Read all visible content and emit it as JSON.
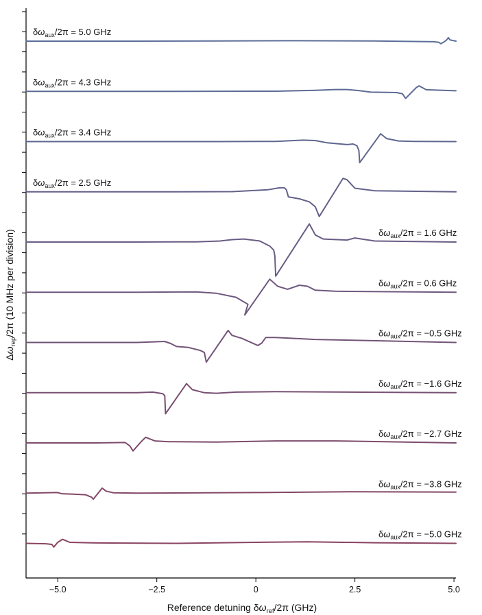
{
  "chart_data": {
    "type": "line",
    "title": "",
    "xlabel": {
      "main": "Reference detuning δ",
      "symbol": "ω",
      "sub": "ref",
      "rest": "/2π (GHz)"
    },
    "ylabel": {
      "main": "Δ",
      "symbol": "ω",
      "sub": "rep",
      "rest": "/2π (10 MHz per division)"
    },
    "xlim": [
      -5.8,
      5.05
    ],
    "x_ticks": [
      -5.0,
      -2.5,
      0,
      2.5,
      5.0
    ],
    "x_tick_labels": [
      "−5.0",
      "−2.5",
      "0",
      "2.5",
      "5.0"
    ],
    "y_units": "MHz",
    "y_division": 10,
    "y_minor_tick_count": 27,
    "series": [
      {
        "label_main": "δ",
        "label_symbol": "ω",
        "label_sub": "aux",
        "label_rest": "/2π = 5.0 GHz",
        "label_side": "left",
        "color": "#5a6e9a",
        "offset_div": 0,
        "x": [
          -5.8,
          -3.0,
          -1.0,
          1.0,
          3.0,
          4.5,
          4.62,
          4.67,
          4.73,
          4.8,
          4.86,
          4.9,
          5.05
        ],
        "y": [
          0,
          0,
          0.1,
          0.2,
          0.1,
          -0.3,
          -0.6,
          -1.3,
          -0.6,
          0.3,
          1.7,
          0.6,
          0.0
        ]
      },
      {
        "label_main": "δ",
        "label_symbol": "ω",
        "label_sub": "aux",
        "label_rest": "/2π = 4.3 GHz",
        "label_side": "left",
        "color": "#5c6a95",
        "offset_div": 2.5,
        "x": [
          -5.8,
          -2.0,
          0.5,
          1.5,
          2.0,
          2.3,
          2.6,
          2.9,
          3.3,
          3.55,
          3.7,
          3.78,
          4.05,
          4.12,
          4.3,
          5.05
        ],
        "y": [
          0,
          0,
          0.1,
          0.5,
          0.9,
          0.9,
          0.4,
          -0.4,
          -0.5,
          -0.6,
          -1.2,
          -3.5,
          1.9,
          2.7,
          0.8,
          0.3
        ]
      },
      {
        "label_main": "δ",
        "label_symbol": "ω",
        "label_sub": "aux",
        "label_rest": "/2π = 3.4 GHz",
        "label_side": "left",
        "color": "#5f6690",
        "offset_div": 5,
        "x": [
          -5.8,
          -1.0,
          0.5,
          1.2,
          1.5,
          1.8,
          2.3,
          2.45,
          2.55,
          2.6,
          2.62,
          3.15,
          3.3,
          3.6,
          4.0,
          5.05
        ],
        "y": [
          0,
          0,
          0.1,
          0.7,
          0.5,
          -0.6,
          -1.5,
          -1.2,
          -2.0,
          -4.4,
          -10.5,
          3.9,
          1.5,
          0.3,
          0.1,
          0.0
        ]
      },
      {
        "label_main": "δ",
        "label_symbol": "ω",
        "label_sub": "aux",
        "label_rest": "/2π = 2.5 GHz",
        "label_side": "left",
        "color": "#63618a",
        "offset_div": 7.5,
        "x": [
          -5.8,
          -2.0,
          -0.6,
          0.3,
          0.6,
          0.72,
          0.77,
          0.82,
          1.1,
          1.35,
          1.5,
          1.6,
          2.2,
          2.3,
          2.5,
          3.0,
          5.05
        ],
        "y": [
          0,
          0,
          0.1,
          1.0,
          2.0,
          2.0,
          1.0,
          -2.5,
          -3.5,
          -5.0,
          -7.5,
          -12.3,
          6.7,
          6.0,
          1.8,
          0.5,
          0.0
        ]
      },
      {
        "label_main": "δ",
        "label_symbol": "ω",
        "label_sub": "aux",
        "label_rest": "/2π = 1.6 GHz",
        "label_side": "right",
        "color": "#685c84",
        "offset_div": 10,
        "x": [
          -5.8,
          -3.0,
          -1.5,
          -0.9,
          -0.6,
          -0.3,
          0.1,
          0.35,
          0.45,
          0.48,
          0.5,
          1.35,
          1.5,
          1.7,
          2.3,
          2.5,
          3.0,
          5.05
        ],
        "y": [
          0,
          0,
          0.1,
          0.5,
          1.2,
          1.5,
          0.5,
          -2.0,
          -4.0,
          -7.0,
          -17.0,
          9.0,
          3.5,
          1.5,
          1.0,
          2.0,
          0.5,
          0.0
        ]
      },
      {
        "label_main": "δ",
        "label_symbol": "ω",
        "label_sub": "aux",
        "label_rest": "/2π = 0.6 GHz",
        "label_side": "right",
        "color": "#6d587e",
        "offset_div": 12.5,
        "x": [
          -5.8,
          -3.0,
          -1.5,
          -1.0,
          -0.5,
          -0.2,
          -0.28,
          0.35,
          0.55,
          0.8,
          1.1,
          1.3,
          1.5,
          2.0,
          5.05
        ],
        "y": [
          0,
          0,
          0.2,
          -0.5,
          -2.5,
          -6.0,
          -11.3,
          6.5,
          3.0,
          1.5,
          3.5,
          3.0,
          1.0,
          0.5,
          0.0
        ]
      },
      {
        "label_main": "δ",
        "label_symbol": "ω",
        "label_sub": "aux",
        "label_rest": "/2π = −0.5 GHz",
        "label_side": "right",
        "color": "#725378",
        "offset_div": 15,
        "x": [
          -5.8,
          -3.0,
          -2.3,
          -2.15,
          -2.0,
          -1.7,
          -1.4,
          -1.3,
          -1.25,
          -0.7,
          -0.6,
          -0.35,
          0.05,
          0.15,
          0.25,
          0.5,
          1.5,
          5.05
        ],
        "y": [
          0,
          0,
          0.5,
          -0.5,
          -2.0,
          -2.5,
          -4.0,
          -5.0,
          -9.8,
          6.0,
          3.5,
          2.0,
          -1.5,
          -0.3,
          2.5,
          2.5,
          1.5,
          0.0
        ]
      },
      {
        "label_main": "δ",
        "label_symbol": "ω",
        "label_sub": "aux",
        "label_rest": "/2π = −1.6 GHz",
        "label_side": "right",
        "color": "#784f72",
        "offset_div": 17.5,
        "x": [
          -5.8,
          -3.0,
          -2.6,
          -2.35,
          -2.3,
          -2.28,
          -1.75,
          -1.6,
          -1.3,
          -1.0,
          -0.5,
          0.5,
          5.05
        ],
        "y": [
          0,
          0,
          0.3,
          -0.5,
          -1.5,
          -10.5,
          4.5,
          1.5,
          0.0,
          -0.3,
          0.3,
          0.5,
          0.0
        ]
      },
      {
        "label_main": "δ",
        "label_symbol": "ω",
        "label_sub": "aux",
        "label_rest": "/2π = −2.7 GHz",
        "label_side": "right",
        "color": "#7d4b6c",
        "offset_div": 20,
        "x": [
          -5.8,
          -4.0,
          -3.3,
          -3.18,
          -3.1,
          -2.9,
          -2.78,
          -2.55,
          -2.2,
          -1.0,
          0.5,
          2.0,
          5.05
        ],
        "y": [
          0,
          0,
          0.2,
          -1.5,
          -4.0,
          0.5,
          2.8,
          1.0,
          0.6,
          0.4,
          1.0,
          1.0,
          0.0
        ]
      },
      {
        "label_main": "δ",
        "label_symbol": "ω",
        "label_sub": "aux",
        "label_rest": "/2π = −3.8 GHz",
        "label_side": "right",
        "color": "#834766",
        "offset_div": 22.5,
        "x": [
          -5.8,
          -5.0,
          -4.9,
          -4.6,
          -4.3,
          -4.15,
          -4.1,
          -3.88,
          -3.78,
          -3.6,
          -3.0,
          0.0,
          2.5,
          5.05
        ],
        "y": [
          0,
          0.3,
          -0.3,
          -0.5,
          -0.8,
          -2.0,
          -3.0,
          2.5,
          1.0,
          0.2,
          0.0,
          0.3,
          0.7,
          0.5
        ]
      },
      {
        "label_main": "δ",
        "label_symbol": "ω",
        "label_sub": "aux",
        "label_rest": "/2π = −5.0 GHz",
        "label_side": "right",
        "color": "#8a4360",
        "offset_div": 25,
        "x": [
          -5.8,
          -5.3,
          -5.15,
          -5.1,
          -5.0,
          -4.88,
          -4.7,
          -4.0,
          -2.0,
          0.0,
          1.3,
          3.0,
          5.05
        ],
        "y": [
          0,
          -0.2,
          -0.5,
          -1.8,
          0.5,
          2.0,
          0.5,
          0.2,
          0.0,
          0.5,
          0.8,
          0.3,
          0.0
        ]
      }
    ]
  }
}
